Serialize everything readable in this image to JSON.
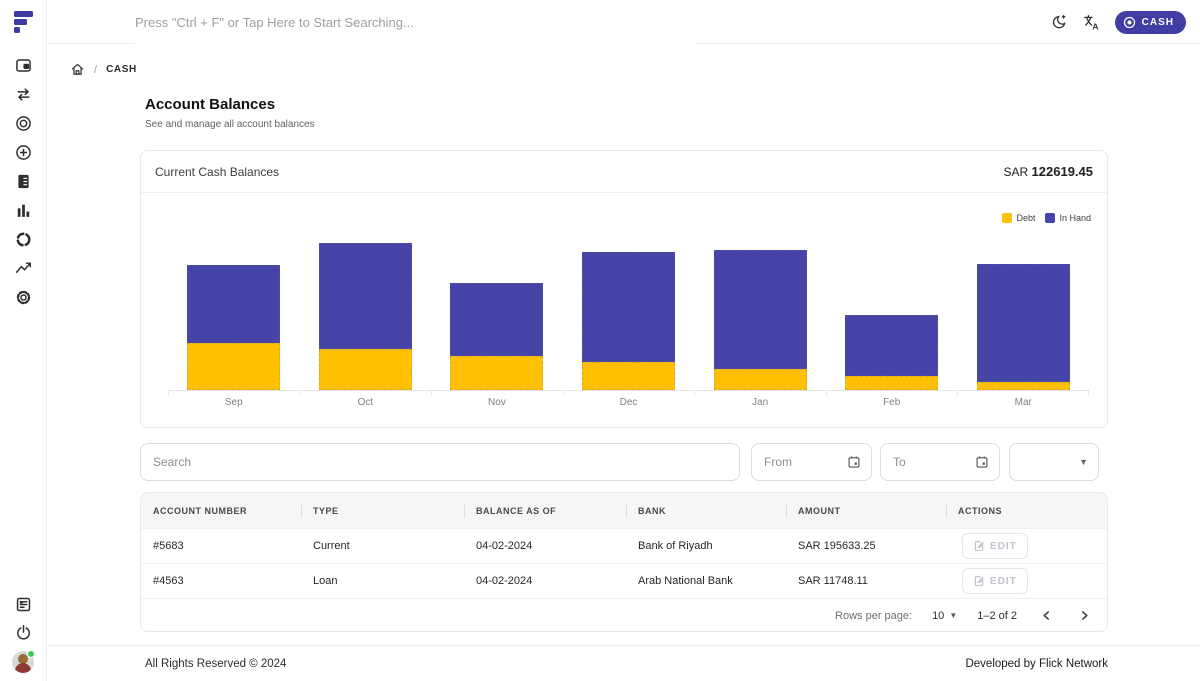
{
  "topbar": {
    "search_placeholder": "Press \"Ctrl + F\" or Tap Here to Start Searching...",
    "cash_button_label": "CASH"
  },
  "breadcrumb": {
    "separator": "/",
    "current": "CASH"
  },
  "page": {
    "title": "Account Balances",
    "subtitle": "See and manage all account balances"
  },
  "balance_card": {
    "title": "Current Cash Balances",
    "currency": "SAR",
    "total": "122619.45"
  },
  "chart_data": {
    "type": "bar",
    "stacked": true,
    "title": "Current Cash Balances",
    "categories": [
      "Sep",
      "Oct",
      "Nov",
      "Dec",
      "Jan",
      "Feb",
      "Mar"
    ],
    "series": [
      {
        "name": "Debt",
        "color": "#ffc003",
        "values": [
          48000,
          42000,
          35000,
          28000,
          21000,
          14000,
          8000
        ]
      },
      {
        "name": "In Hand",
        "color": "#4744a8",
        "values": [
          79000,
          107000,
          74000,
          112000,
          121000,
          62000,
          120000
        ]
      }
    ],
    "xlabel": "",
    "ylabel": "",
    "ylim": [
      0,
      150000
    ],
    "grid": false,
    "legend_position": "top-right",
    "note": "y-axis is unlabeled in UI; values estimated from bar heights"
  },
  "filters": {
    "search_placeholder": "Search",
    "from_placeholder": "From",
    "to_placeholder": "To",
    "select_value": ""
  },
  "table": {
    "columns": [
      "ACCOUNT NUMBER",
      "TYPE",
      "BALANCE AS OF",
      "BANK",
      "AMOUNT",
      "ACTIONS"
    ],
    "rows": [
      {
        "cells": [
          "#5683",
          "Current",
          "04-02-2024",
          "Bank of Riyadh",
          "SAR 195633.25"
        ],
        "action_label": "EDIT"
      },
      {
        "cells": [
          "#4563",
          "Loan",
          "04-02-2024",
          "Arab National Bank",
          "SAR 11748.11"
        ],
        "action_label": "EDIT"
      }
    ],
    "pagination": {
      "rows_per_page_label": "Rows per page:",
      "rows_per_page_value": "10",
      "range_label": "1–2 of 2"
    }
  },
  "footer": {
    "left": "All Rights Reserved © 2024",
    "right": "Developed by Flick Network"
  },
  "colors": {
    "accent": "#413da4",
    "debt": "#ffc003",
    "in_hand": "#4744a8"
  },
  "sidebar": {
    "top_icons": [
      "wallet-icon",
      "swap-arrows-icon",
      "target-icon",
      "plus-circle-icon",
      "invoice-icon",
      "bar-chart-icon",
      "sync-icon",
      "trend-line-icon",
      "gear-icon"
    ],
    "bottom_icons": [
      "news-icon",
      "power-icon",
      "avatar"
    ]
  }
}
